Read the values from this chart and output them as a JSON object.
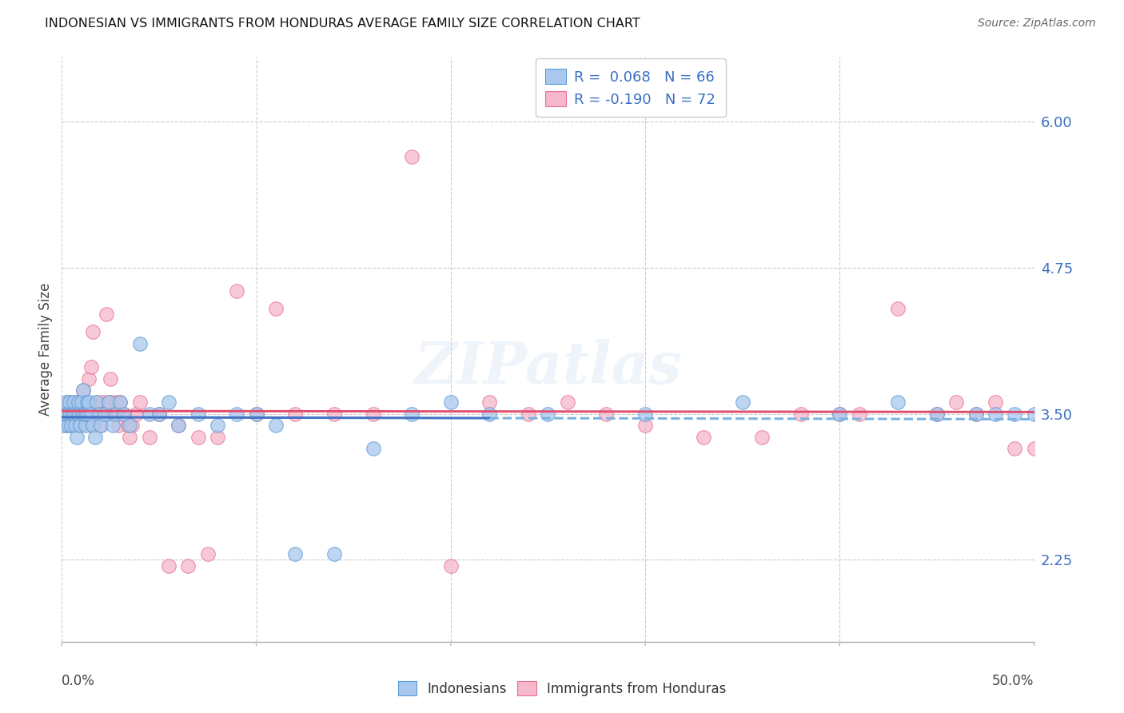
{
  "title": "INDONESIAN VS IMMIGRANTS FROM HONDURAS AVERAGE FAMILY SIZE CORRELATION CHART",
  "source": "Source: ZipAtlas.com",
  "ylabel": "Average Family Size",
  "right_yticks": [
    2.25,
    3.5,
    4.75,
    6.0
  ],
  "right_ytick_labels": [
    "2.25",
    "3.50",
    "4.75",
    "6.00"
  ],
  "legend_r1": "R =  0.068",
  "legend_n1": "N = 66",
  "legend_r2": "R = -0.190",
  "legend_n2": "N = 72",
  "blue_scatter": "#a8c8ed",
  "blue_edge": "#5b9bd5",
  "pink_scatter": "#f5b8cc",
  "pink_edge": "#e8708a",
  "trend_blue_solid": "#4472c4",
  "trend_blue_dash": "#7ab3e0",
  "trend_pink": "#e05070",
  "watermark": "ZIPatlas",
  "xmin": 0,
  "xmax": 50,
  "ymin": 1.55,
  "ymax": 6.55,
  "indonesians_x": [
    0.1,
    0.15,
    0.2,
    0.25,
    0.3,
    0.35,
    0.4,
    0.45,
    0.5,
    0.55,
    0.6,
    0.65,
    0.7,
    0.75,
    0.8,
    0.85,
    0.9,
    0.95,
    1.0,
    1.05,
    1.1,
    1.15,
    1.2,
    1.25,
    1.3,
    1.35,
    1.4,
    1.5,
    1.6,
    1.7,
    1.8,
    1.9,
    2.0,
    2.2,
    2.4,
    2.6,
    2.8,
    3.0,
    3.2,
    3.5,
    4.0,
    4.5,
    5.0,
    5.5,
    6.0,
    7.0,
    8.0,
    9.0,
    10.0,
    11.0,
    12.0,
    14.0,
    16.0,
    18.0,
    20.0,
    25.0,
    30.0,
    35.0,
    40.0,
    43.0,
    45.0,
    47.0,
    48.0,
    49.0,
    50.0,
    22.0
  ],
  "indonesians_y": [
    3.5,
    3.4,
    3.5,
    3.6,
    3.5,
    3.4,
    3.6,
    3.5,
    3.4,
    3.5,
    3.6,
    3.5,
    3.4,
    3.3,
    3.5,
    3.6,
    3.5,
    3.4,
    3.6,
    3.5,
    3.7,
    3.5,
    3.4,
    3.5,
    3.6,
    3.5,
    3.6,
    3.5,
    3.4,
    3.3,
    3.6,
    3.5,
    3.4,
    3.5,
    3.6,
    3.4,
    3.5,
    3.6,
    3.5,
    3.4,
    4.1,
    3.5,
    3.5,
    3.6,
    3.4,
    3.5,
    3.4,
    3.5,
    3.5,
    3.4,
    2.3,
    2.3,
    3.2,
    3.5,
    3.6,
    3.5,
    3.5,
    3.6,
    3.5,
    3.6,
    3.5,
    3.5,
    3.5,
    3.5,
    3.5,
    3.5
  ],
  "honduras_x": [
    0.1,
    0.2,
    0.3,
    0.4,
    0.5,
    0.6,
    0.7,
    0.8,
    0.9,
    1.0,
    1.1,
    1.2,
    1.3,
    1.4,
    1.5,
    1.6,
    1.7,
    1.8,
    1.9,
    2.0,
    2.1,
    2.2,
    2.3,
    2.4,
    2.5,
    2.6,
    2.7,
    2.8,
    2.9,
    3.0,
    3.2,
    3.4,
    3.6,
    3.8,
    4.0,
    4.5,
    5.0,
    6.0,
    7.0,
    8.0,
    9.0,
    10.0,
    11.0,
    12.0,
    14.0,
    16.0,
    18.0,
    20.0,
    22.0,
    24.0,
    26.0,
    28.0,
    30.0,
    33.0,
    36.0,
    38.0,
    40.0,
    41.0,
    43.0,
    45.0,
    46.0,
    47.0,
    48.0,
    49.0,
    50.0,
    5.5,
    6.5,
    7.5,
    3.5,
    2.5,
    1.5,
    0.85
  ],
  "honduras_y": [
    3.5,
    3.4,
    3.6,
    3.5,
    3.4,
    3.5,
    3.6,
    3.5,
    3.4,
    3.6,
    3.7,
    3.6,
    3.5,
    3.8,
    3.4,
    4.2,
    3.5,
    3.6,
    3.5,
    3.4,
    3.6,
    3.5,
    4.35,
    3.6,
    3.6,
    3.5,
    3.5,
    3.6,
    3.4,
    3.6,
    3.5,
    3.4,
    3.4,
    3.5,
    3.6,
    3.3,
    3.5,
    3.4,
    3.3,
    3.3,
    4.55,
    3.5,
    4.4,
    3.5,
    3.5,
    3.5,
    5.7,
    2.2,
    3.6,
    3.5,
    3.6,
    3.5,
    3.4,
    3.3,
    3.3,
    3.5,
    3.5,
    3.5,
    4.4,
    3.5,
    3.6,
    3.5,
    3.6,
    3.2,
    3.2,
    2.2,
    2.2,
    2.3,
    3.3,
    3.8,
    3.9,
    3.6
  ]
}
